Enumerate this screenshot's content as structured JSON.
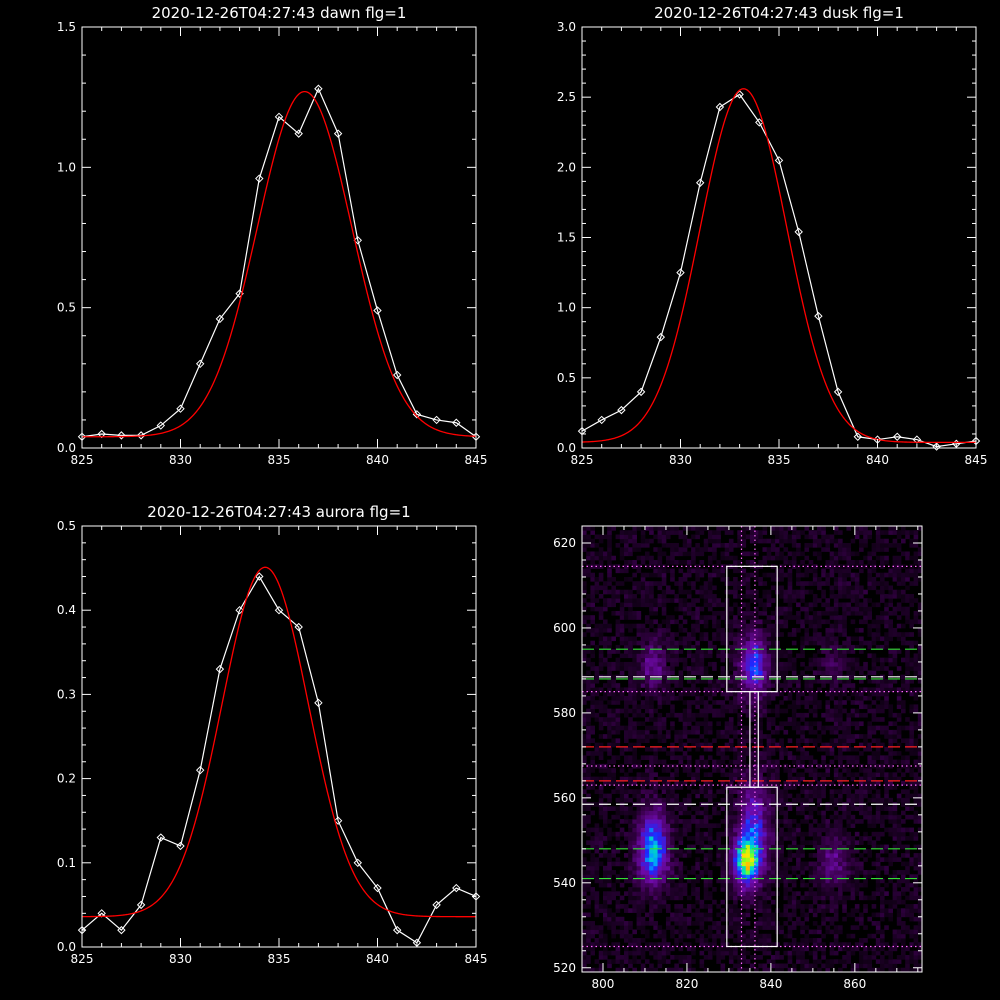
{
  "chart_data": [
    {
      "type": "line",
      "title": "2020-12-26T04:27:43 dawn flg=1",
      "xlim": [
        825,
        845
      ],
      "ylim": [
        0.0,
        1.5
      ],
      "xticks": [
        "825",
        "830",
        "835",
        "840",
        "845"
      ],
      "yticks": [
        "0.0",
        "0.5",
        "1.0",
        "1.5"
      ],
      "series": [
        {
          "kind": "data",
          "color": "#ffffff",
          "marker": "diamond",
          "x": [
            825,
            826,
            827,
            828,
            829,
            830,
            831,
            832,
            833,
            834,
            835,
            836,
            837,
            838,
            839,
            840,
            841,
            842,
            843,
            844,
            845
          ],
          "y": [
            0.04,
            0.05,
            0.045,
            0.045,
            0.08,
            0.14,
            0.3,
            0.46,
            0.55,
            0.96,
            1.18,
            1.12,
            1.28,
            1.12,
            0.74,
            0.49,
            0.26,
            0.12,
            0.1,
            0.09,
            0.04
          ]
        },
        {
          "kind": "fit",
          "color": "#ff0000",
          "gaussian": {
            "amp": 1.23,
            "center": 836.3,
            "sigma": 2.4,
            "base": 0.04
          }
        }
      ]
    },
    {
      "type": "line",
      "title": "2020-12-26T04:27:43 dusk flg=1",
      "xlim": [
        825,
        845
      ],
      "ylim": [
        0.0,
        3.0
      ],
      "xticks": [
        "825",
        "830",
        "835",
        "840",
        "845"
      ],
      "yticks": [
        "0.0",
        "0.5",
        "1.0",
        "1.5",
        "2.0",
        "2.5",
        "3.0"
      ],
      "series": [
        {
          "kind": "data",
          "color": "#ffffff",
          "marker": "diamond",
          "x": [
            825,
            826,
            827,
            828,
            829,
            830,
            831,
            832,
            833,
            834,
            835,
            836,
            837,
            838,
            839,
            840,
            841,
            842,
            843,
            844,
            845
          ],
          "y": [
            0.12,
            0.2,
            0.27,
            0.4,
            0.79,
            1.25,
            1.89,
            2.43,
            2.52,
            2.32,
            2.05,
            1.54,
            0.94,
            0.4,
            0.08,
            0.06,
            0.08,
            0.06,
            0.01,
            0.03,
            0.05
          ]
        },
        {
          "kind": "fit",
          "color": "#ff0000",
          "gaussian": {
            "amp": 2.52,
            "center": 833.2,
            "sigma": 2.2,
            "base": 0.04
          }
        }
      ]
    },
    {
      "type": "line",
      "title": "2020-12-26T04:27:43 aurora flg=1",
      "xlim": [
        825,
        845
      ],
      "ylim": [
        0.0,
        0.5
      ],
      "xticks": [
        "825",
        "830",
        "835",
        "840",
        "845"
      ],
      "yticks": [
        "0.0",
        "0.1",
        "0.2",
        "0.3",
        "0.4",
        "0.5"
      ],
      "series": [
        {
          "kind": "data",
          "color": "#ffffff",
          "marker": "diamond",
          "x": [
            825,
            826,
            827,
            828,
            829,
            830,
            831,
            832,
            833,
            834,
            835,
            836,
            837,
            838,
            839,
            840,
            841,
            842,
            843,
            844,
            845
          ],
          "y": [
            0.02,
            0.04,
            0.02,
            0.05,
            0.13,
            0.12,
            0.21,
            0.33,
            0.4,
            0.44,
            0.4,
            0.38,
            0.29,
            0.15,
            0.1,
            0.07,
            0.02,
            0.005,
            0.05,
            0.07,
            0.06
          ]
        },
        {
          "kind": "fit",
          "color": "#ff0000",
          "gaussian": {
            "amp": 0.415,
            "center": 834.3,
            "sigma": 2.2,
            "base": 0.036
          }
        }
      ]
    },
    {
      "type": "heatmap",
      "title": "",
      "xlim": [
        795,
        876
      ],
      "ylim": [
        519,
        624
      ],
      "xticks": [
        "800",
        "820",
        "840",
        "860"
      ],
      "yticks": [
        "520",
        "540",
        "560",
        "580",
        "600",
        "620"
      ],
      "blobs": [
        {
          "x": 812,
          "y": 546,
          "sx": 2.6,
          "sy": 5.0,
          "amp": 0.48
        },
        {
          "x": 812,
          "y": 553,
          "sx": 2.3,
          "sy": 5.0,
          "amp": 0.25
        },
        {
          "x": 812,
          "y": 591,
          "sx": 2.2,
          "sy": 4.0,
          "amp": 0.28
        },
        {
          "x": 834,
          "y": 545,
          "sx": 2.2,
          "sy": 4.0,
          "amp": 0.65
        },
        {
          "x": 836,
          "y": 553,
          "sx": 2.6,
          "sy": 8.0,
          "amp": 0.4
        },
        {
          "x": 836,
          "y": 591,
          "sx": 2.3,
          "sy": 5.0,
          "amp": 0.5
        },
        {
          "x": 855,
          "y": 545,
          "sx": 2.2,
          "sy": 4.0,
          "amp": 0.26
        },
        {
          "x": 855,
          "y": 591,
          "sx": 2.2,
          "sy": 4.0,
          "amp": 0.12
        }
      ],
      "noise_level": 0.13,
      "boxes": [
        {
          "x": [
            829.5,
            841.5
          ],
          "y": [
            525,
            562.5
          ]
        },
        {
          "x": [
            829.5,
            841.5
          ],
          "y": [
            585,
            614.5
          ]
        },
        {
          "x": [
            835,
            837
          ],
          "y": [
            562.5,
            585
          ]
        }
      ],
      "vlines": [
        {
          "x": 833,
          "color": "#ff66ff",
          "style": "dotted"
        },
        {
          "x": 836.2,
          "color": "#ff66ff",
          "style": "dotted"
        }
      ],
      "hlines": [
        {
          "y": 525,
          "color": "#ff66ff",
          "style": "dotted"
        },
        {
          "y": 563,
          "color": "#ff66ff",
          "style": "dotted"
        },
        {
          "y": 567.5,
          "color": "#ff66ff",
          "style": "dotted"
        },
        {
          "y": 585,
          "color": "#ff66ff",
          "style": "dotted"
        },
        {
          "y": 614.5,
          "color": "#ff66ff",
          "style": "dotted"
        },
        {
          "y": 541,
          "color": "#33dd33",
          "style": "dashed"
        },
        {
          "y": 548,
          "color": "#33dd33",
          "style": "dashed"
        },
        {
          "y": 588,
          "color": "#33dd33",
          "style": "dashed"
        },
        {
          "y": 595,
          "color": "#33dd33",
          "style": "dashed"
        },
        {
          "y": 558.5,
          "color": "#ffffff",
          "style": "dashed"
        },
        {
          "y": 588.5,
          "color": "#ffffff",
          "style": "dashed"
        },
        {
          "y": 564,
          "color": "#ff2020",
          "style": "dashed"
        },
        {
          "y": 572,
          "color": "#ff2020",
          "style": "dashed"
        }
      ]
    }
  ]
}
